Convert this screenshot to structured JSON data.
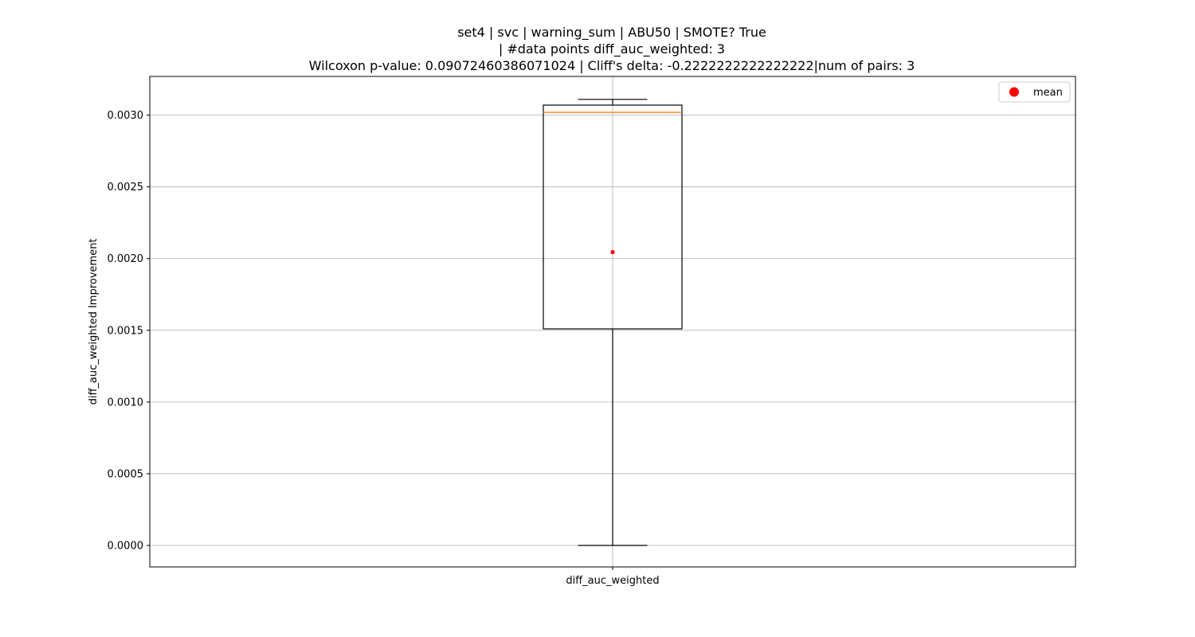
{
  "chart_data": {
    "type": "box",
    "title_lines": [
      "set4 | svc | warning_sum | ABU50 | SMOTE? True",
      "| #data points diff_auc_weighted: 3",
      "Wilcoxon p-value: 0.09072460386071024 | Cliff's delta: -0.2222222222222222|num of pairs: 3"
    ],
    "xlabel": "",
    "ylabel": "diff_auc_weighted Improvement",
    "categories": [
      "diff_auc_weighted"
    ],
    "ylim": [
      -0.00015,
      0.00327
    ],
    "yticks": [
      0.0,
      0.0005,
      0.001,
      0.0015,
      0.002,
      0.0025,
      0.003
    ],
    "ytick_labels": [
      "0.0000",
      "0.0005",
      "0.0010",
      "0.0015",
      "0.0020",
      "0.0025",
      "0.0030"
    ],
    "box": {
      "whisker_low": 0.0,
      "q1": 0.00151,
      "median": 0.00302,
      "q3": 0.00307,
      "whisker_high": 0.00311,
      "mean": 0.002045
    },
    "grid": true,
    "legend": {
      "placement": "top-right",
      "entries": [
        "mean"
      ]
    },
    "colors": {
      "box": "#000000",
      "median": "#ff7f0e",
      "mean": "#ff0000",
      "grid": "#b0b0b0"
    }
  }
}
